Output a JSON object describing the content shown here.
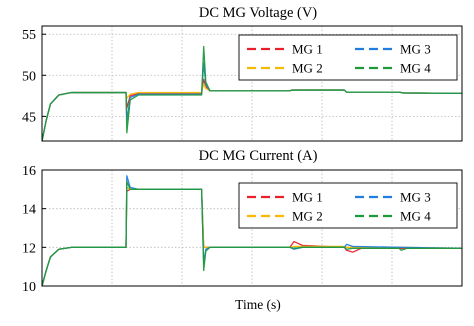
{
  "chart_data": [
    {
      "type": "line",
      "title": "DC MG Voltage (V)",
      "xlabel": "Time (s)",
      "ylabel": "",
      "xlim": [
        0,
        1
      ],
      "ylim": [
        42,
        56
      ],
      "yticks": [
        45,
        50,
        55
      ],
      "grid": true,
      "legend_position": "top-right",
      "legend_columns": 2,
      "series": [
        {
          "name": "MG 1",
          "color": "#e8202a",
          "dash": true,
          "points": [
            [
              0.0,
              42.0
            ],
            [
              0.01,
              44.5
            ],
            [
              0.02,
              46.5
            ],
            [
              0.04,
              47.6
            ],
            [
              0.07,
              47.9
            ],
            [
              0.2,
              47.9
            ],
            [
              0.202,
              46.0
            ],
            [
              0.21,
              47.5
            ],
            [
              0.23,
              47.8
            ],
            [
              0.38,
              47.8
            ],
            [
              0.385,
              49.5
            ],
            [
              0.39,
              48.6
            ],
            [
              0.4,
              48.1
            ],
            [
              0.59,
              48.1
            ],
            [
              0.595,
              48.2
            ],
            [
              0.72,
              48.2
            ],
            [
              0.725,
              47.95
            ],
            [
              0.85,
              47.95
            ],
            [
              0.86,
              47.85
            ],
            [
              1.0,
              47.8
            ]
          ]
        },
        {
          "name": "MG 2",
          "color": "#f7b800",
          "dash": true,
          "points": [
            [
              0.0,
              42.0
            ],
            [
              0.01,
              44.5
            ],
            [
              0.02,
              46.5
            ],
            [
              0.04,
              47.6
            ],
            [
              0.07,
              47.9
            ],
            [
              0.2,
              47.9
            ],
            [
              0.202,
              47.2
            ],
            [
              0.21,
              47.7
            ],
            [
              0.23,
              47.9
            ],
            [
              0.38,
              47.9
            ],
            [
              0.385,
              49.0
            ],
            [
              0.39,
              48.4
            ],
            [
              0.4,
              48.1
            ],
            [
              0.59,
              48.1
            ],
            [
              0.595,
              48.2
            ],
            [
              0.72,
              48.2
            ],
            [
              0.725,
              47.95
            ],
            [
              0.85,
              47.95
            ],
            [
              0.86,
              47.85
            ],
            [
              1.0,
              47.8
            ]
          ]
        },
        {
          "name": "MG 3",
          "color": "#1f7ee0",
          "dash": true,
          "points": [
            [
              0.0,
              42.0
            ],
            [
              0.01,
              44.5
            ],
            [
              0.02,
              46.5
            ],
            [
              0.04,
              47.6
            ],
            [
              0.07,
              47.9
            ],
            [
              0.2,
              47.9
            ],
            [
              0.202,
              44.5
            ],
            [
              0.21,
              47.3
            ],
            [
              0.23,
              47.7
            ],
            [
              0.38,
              47.7
            ],
            [
              0.385,
              51.5
            ],
            [
              0.39,
              48.9
            ],
            [
              0.4,
              48.1
            ],
            [
              0.59,
              48.1
            ],
            [
              0.595,
              48.2
            ],
            [
              0.72,
              48.2
            ],
            [
              0.725,
              47.95
            ],
            [
              0.85,
              47.95
            ],
            [
              0.86,
              47.85
            ],
            [
              1.0,
              47.8
            ]
          ]
        },
        {
          "name": "MG 4",
          "color": "#1f9a3a",
          "dash": true,
          "points": [
            [
              0.0,
              42.0
            ],
            [
              0.01,
              44.5
            ],
            [
              0.02,
              46.5
            ],
            [
              0.04,
              47.6
            ],
            [
              0.07,
              47.9
            ],
            [
              0.2,
              47.9
            ],
            [
              0.202,
              43.0
            ],
            [
              0.21,
              47.0
            ],
            [
              0.23,
              47.6
            ],
            [
              0.38,
              47.6
            ],
            [
              0.385,
              53.5
            ],
            [
              0.39,
              49.2
            ],
            [
              0.4,
              48.1
            ],
            [
              0.59,
              48.1
            ],
            [
              0.595,
              48.2
            ],
            [
              0.72,
              48.2
            ],
            [
              0.725,
              47.95
            ],
            [
              0.85,
              47.95
            ],
            [
              0.86,
              47.85
            ],
            [
              1.0,
              47.8
            ]
          ]
        }
      ]
    },
    {
      "type": "line",
      "title": "DC MG Current (A)",
      "xlabel": "Time (s)",
      "ylabel": "",
      "xlim": [
        0,
        1
      ],
      "ylim": [
        10,
        16
      ],
      "yticks": [
        10,
        12,
        14,
        16
      ],
      "grid": true,
      "legend_position": "top-right",
      "legend_columns": 2,
      "series": [
        {
          "name": "MG 1",
          "color": "#e8202a",
          "dash": true,
          "points": [
            [
              0.0,
              10.0
            ],
            [
              0.01,
              10.8
            ],
            [
              0.02,
              11.5
            ],
            [
              0.04,
              11.9
            ],
            [
              0.07,
              12.0
            ],
            [
              0.2,
              12.0
            ],
            [
              0.202,
              14.9
            ],
            [
              0.21,
              15.0
            ],
            [
              0.38,
              15.0
            ],
            [
              0.385,
              12.0
            ],
            [
              0.59,
              12.0
            ],
            [
              0.6,
              12.3
            ],
            [
              0.62,
              12.1
            ],
            [
              0.72,
              12.0
            ],
            [
              0.725,
              11.85
            ],
            [
              0.74,
              11.75
            ],
            [
              0.76,
              11.95
            ],
            [
              0.85,
              11.95
            ],
            [
              0.855,
              11.95
            ],
            [
              1.0,
              11.95
            ]
          ]
        },
        {
          "name": "MG 2",
          "color": "#f7b800",
          "dash": true,
          "points": [
            [
              0.0,
              10.0
            ],
            [
              0.01,
              10.8
            ],
            [
              0.02,
              11.5
            ],
            [
              0.04,
              11.9
            ],
            [
              0.07,
              12.0
            ],
            [
              0.2,
              12.0
            ],
            [
              0.202,
              15.1
            ],
            [
              0.21,
              15.0
            ],
            [
              0.38,
              15.0
            ],
            [
              0.385,
              12.0
            ],
            [
              0.59,
              12.0
            ],
            [
              0.6,
              12.05
            ],
            [
              0.62,
              12.05
            ],
            [
              0.72,
              12.05
            ],
            [
              0.725,
              12.0
            ],
            [
              0.85,
              12.0
            ],
            [
              1.0,
              11.95
            ]
          ]
        },
        {
          "name": "MG 3",
          "color": "#1f7ee0",
          "dash": true,
          "points": [
            [
              0.0,
              10.0
            ],
            [
              0.01,
              10.8
            ],
            [
              0.02,
              11.5
            ],
            [
              0.04,
              11.9
            ],
            [
              0.07,
              12.0
            ],
            [
              0.2,
              12.0
            ],
            [
              0.202,
              15.7
            ],
            [
              0.21,
              15.1
            ],
            [
              0.23,
              15.0
            ],
            [
              0.38,
              15.0
            ],
            [
              0.385,
              11.2
            ],
            [
              0.39,
              11.9
            ],
            [
              0.4,
              12.0
            ],
            [
              0.59,
              12.0
            ],
            [
              0.6,
              11.9
            ],
            [
              0.62,
              12.0
            ],
            [
              0.72,
              12.0
            ],
            [
              0.725,
              12.15
            ],
            [
              0.74,
              12.05
            ],
            [
              0.85,
              12.0
            ],
            [
              1.0,
              11.95
            ]
          ]
        },
        {
          "name": "MG 4",
          "color": "#1f9a3a",
          "dash": true,
          "points": [
            [
              0.0,
              10.0
            ],
            [
              0.01,
              10.8
            ],
            [
              0.02,
              11.5
            ],
            [
              0.04,
              11.9
            ],
            [
              0.07,
              12.0
            ],
            [
              0.2,
              12.0
            ],
            [
              0.202,
              15.4
            ],
            [
              0.21,
              15.0
            ],
            [
              0.38,
              15.0
            ],
            [
              0.385,
              10.8
            ],
            [
              0.39,
              11.8
            ],
            [
              0.4,
              12.0
            ],
            [
              0.59,
              12.0
            ],
            [
              0.6,
              11.95
            ],
            [
              0.62,
              12.0
            ],
            [
              0.72,
              12.0
            ],
            [
              0.725,
              11.9
            ],
            [
              0.74,
              11.95
            ],
            [
              0.85,
              11.95
            ],
            [
              0.855,
              11.85
            ],
            [
              0.87,
              11.95
            ],
            [
              1.0,
              11.95
            ]
          ]
        }
      ]
    }
  ]
}
